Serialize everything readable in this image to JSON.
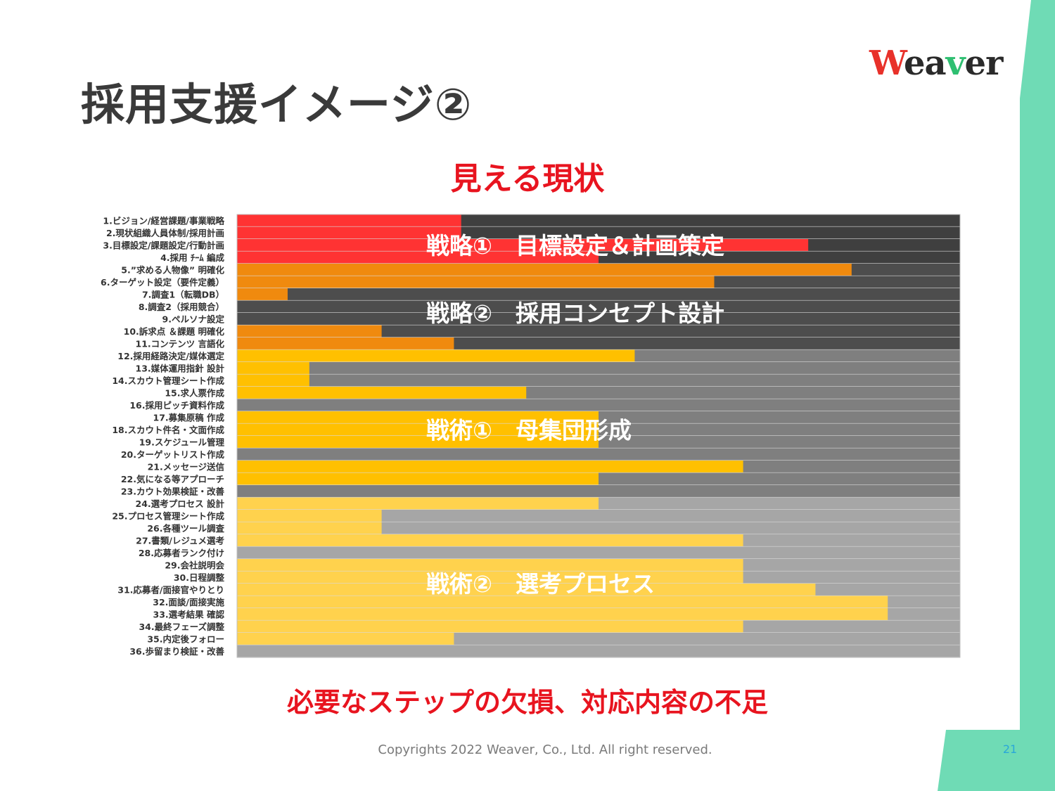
{
  "slide": {
    "title": "採用支援イメージ②",
    "subtitle": "見える現状",
    "conclusion": "必要なステップの欠損、対応内容の不足",
    "footer": "Copyrights 2022 Weaver, Co., Ltd. All right reserved.",
    "page_number": "21"
  },
  "logo": {
    "letters": [
      {
        "ch": "W",
        "color": "#e8312a"
      },
      {
        "ch": "e",
        "color": "#2a2a2a"
      },
      {
        "ch": "a",
        "color": "#2a2a2a"
      },
      {
        "ch": "v",
        "color": "#2fbf71"
      },
      {
        "ch": "e",
        "color": "#2a2a2a"
      },
      {
        "ch": "r",
        "color": "#2a2a2a"
      }
    ]
  },
  "colors": {
    "accent_red": "#e8141f",
    "teal": "#6fdbb5",
    "phase1_bar": "#ff3333",
    "phase2_bar": "#f08a0e",
    "phase3_bar": "#ffc000",
    "phase4_bar": "#ffd24d",
    "phase1_bg": "#3f3f3f",
    "phase2_bg": "#4d4d4d",
    "phase3_bg": "#7f7f7f",
    "phase4_bg": "#a6a6a6"
  },
  "chart_data": {
    "type": "bar",
    "orientation": "horizontal",
    "xlim": [
      0,
      100
    ],
    "grid": false,
    "overlays": [
      {
        "text": "戦略①　目標設定＆計画策定",
        "row": 2
      },
      {
        "text": "戦略②　採用コンセプト設計",
        "row": 7.5
      },
      {
        "text": "戦術①　母集団形成",
        "row": 17
      },
      {
        "text": "戦術②　選考プロセス",
        "row": 29.5
      }
    ],
    "phases": [
      {
        "name": "戦略①",
        "rows": [
          0,
          3
        ]
      },
      {
        "name": "戦略②",
        "rows": [
          4,
          10
        ]
      },
      {
        "name": "戦術①",
        "rows": [
          11,
          22
        ]
      },
      {
        "name": "戦術②",
        "rows": [
          23,
          35
        ]
      }
    ],
    "categories": [
      "1.ビジョン/経営課題/事業戦略",
      "2.現状組織人員体制/採用計画",
      "3.目標設定/課題設定/行動計画",
      "4.採用 ﾁｰﾑ 編成",
      "5.”求める人物像” 明確化",
      "6.ターゲット設定（要件定義）",
      "7.調査1（転職DB）",
      "8.調査2（採用競合）",
      "9.ペルソナ設定",
      "10.訴求点 ＆課題 明確化",
      "11.コンテンツ 言語化",
      "12.採用経路決定/媒体選定",
      "13.媒体運用指針 設計",
      "14.スカウト管理シート作成",
      "15.求人票作成",
      "16.採用ピッチ資料作成",
      "17.募集原稿 作成",
      "18.スカウト件名・文面作成",
      "19.スケジュール管理",
      "20.ターゲットリスト作成",
      "21.メッセージ送信",
      "22.気になる等アプローチ",
      "23.カウト効果検証・改善",
      "24.選考プロセス 設計",
      "25.プロセス管理シート作成",
      "26.各種ツール調査",
      "27.書類/レジュメ選考",
      "28.応募者ランク付け",
      "29.会社説明会",
      "30.日程調整",
      "31.応募者/面接官やりとり",
      "32.面談/面接実施",
      "33.選考結果 確認",
      "34.最終フェーズ調整",
      "35.内定後フォロー",
      "36.歩留まり検証・改善"
    ],
    "values": [
      31,
      31,
      79,
      50,
      85,
      66,
      7,
      0,
      0,
      20,
      30,
      55,
      10,
      10,
      40,
      0,
      50,
      50,
      50,
      0,
      70,
      50,
      0,
      50,
      20,
      20,
      70,
      0,
      70,
      70,
      80,
      90,
      90,
      70,
      30,
      0
    ]
  }
}
